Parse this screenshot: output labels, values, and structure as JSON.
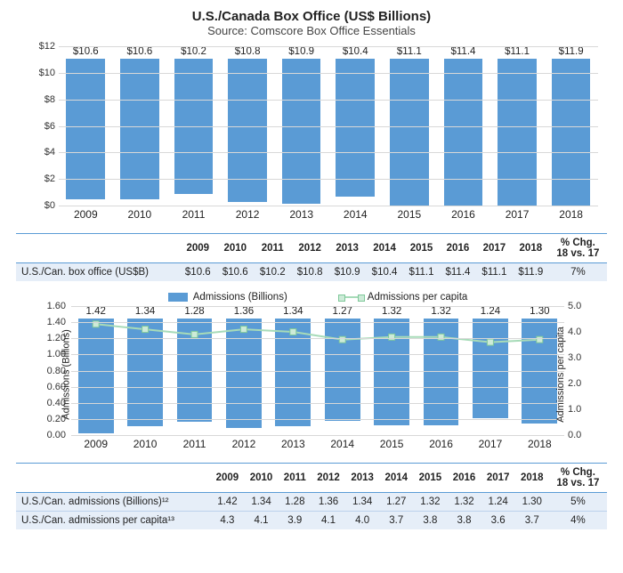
{
  "title": "U.S./Canada Box Office (US$ Billions)",
  "subtitle": "Source: Comscore Box Office Essentials",
  "years": [
    "2009",
    "2010",
    "2011",
    "2012",
    "2013",
    "2014",
    "2015",
    "2016",
    "2017",
    "2018"
  ],
  "colors": {
    "bar": "#5a9bd5",
    "grid": "#d8d8d8",
    "table_row": "#e6eef8",
    "line": "#a7dbb8",
    "line_marker_border": "#7fc89a",
    "line_marker_fill": "#cdebd8",
    "text": "#222222",
    "background": "#ffffff"
  },
  "chart1": {
    "type": "bar",
    "values": [
      10.6,
      10.6,
      10.2,
      10.8,
      10.9,
      10.4,
      11.1,
      11.4,
      11.1,
      11.9
    ],
    "value_labels": [
      "$10.6",
      "$10.6",
      "$10.2",
      "$10.8",
      "$10.9",
      "$10.4",
      "$11.1",
      "$11.4",
      "$11.1",
      "$11.9"
    ],
    "ylim": [
      0,
      12
    ],
    "ytick_step": 2,
    "ytick_prefix": "$",
    "bar_width_pct": 72,
    "label_fontsize": 11.5,
    "tick_fontsize": 11
  },
  "chart2": {
    "type": "bar+line",
    "legend": {
      "bar": "Admissions (Billions)",
      "line": "Admissions per capita"
    },
    "bar_values": [
      1.42,
      1.34,
      1.28,
      1.36,
      1.34,
      1.27,
      1.32,
      1.32,
      1.24,
      1.3
    ],
    "bar_labels": [
      "1.42",
      "1.34",
      "1.28",
      "1.36",
      "1.34",
      "1.27",
      "1.32",
      "1.32",
      "1.24",
      "1.30"
    ],
    "line_values": [
      4.3,
      4.1,
      3.9,
      4.1,
      4.0,
      3.7,
      3.8,
      3.8,
      3.6,
      3.7
    ],
    "ylim_l": [
      0.0,
      1.6
    ],
    "ytick_step_l": 0.2,
    "ylim_r": [
      0.0,
      5.0
    ],
    "ytick_step_r": 1.0,
    "yaxis_label_l": "Admissions (Billions)",
    "yaxis_label_r": "Admissions per capita",
    "bar_width_pct": 72,
    "marker_size": 7,
    "line_width": 2
  },
  "table1": {
    "chg_header": "% Chg.\n18 vs. 17",
    "rows": [
      {
        "label": "U.S./Can. box office (US$B)",
        "cells": [
          "$10.6",
          "$10.6",
          "$10.2",
          "$10.8",
          "$10.9",
          "$10.4",
          "$11.1",
          "$11.4",
          "$11.1",
          "$11.9"
        ],
        "chg": "7%"
      }
    ]
  },
  "table2": {
    "chg_header": "% Chg.\n18 vs. 17",
    "rows": [
      {
        "label": "U.S./Can. admissions (Billions)¹²",
        "cells": [
          "1.42",
          "1.34",
          "1.28",
          "1.36",
          "1.34",
          "1.27",
          "1.32",
          "1.32",
          "1.24",
          "1.30"
        ],
        "chg": "5%"
      },
      {
        "label": "U.S./Can. admissions per capita¹³",
        "cells": [
          "4.3",
          "4.1",
          "3.9",
          "4.1",
          "4.0",
          "3.7",
          "3.8",
          "3.8",
          "3.6",
          "3.7"
        ],
        "chg": "4%"
      }
    ]
  }
}
